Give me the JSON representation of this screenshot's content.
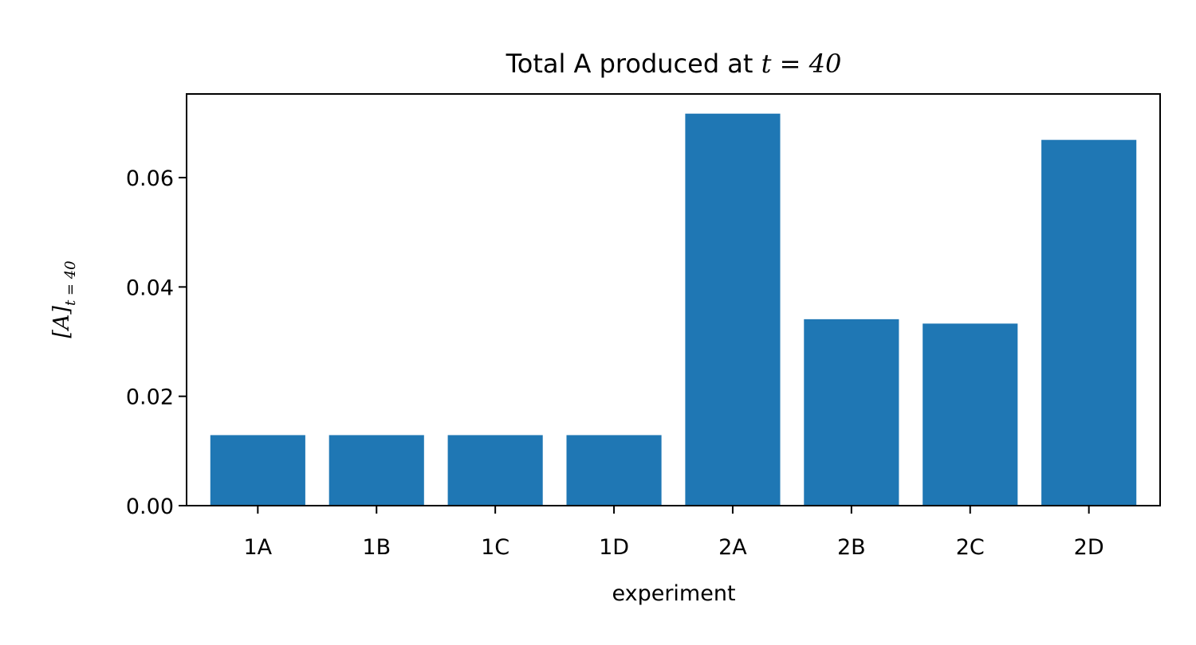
{
  "chart_data": {
    "type": "bar",
    "title_prefix": "Total A produced at ",
    "title_math": "t = 40",
    "xlabel": "experiment",
    "ylabel_main": "[A]",
    "ylabel_sub": "t = 40",
    "categories": [
      "1A",
      "1B",
      "1C",
      "1D",
      "2A",
      "2B",
      "2C",
      "2D"
    ],
    "values": [
      0.0129,
      0.0129,
      0.0129,
      0.0129,
      0.0717,
      0.0341,
      0.0333,
      0.0669
    ],
    "ylim": [
      0,
      0.0753
    ],
    "yticks": [
      0.0,
      0.02,
      0.04,
      0.06
    ],
    "ytick_labels": [
      "0.00",
      "0.02",
      "0.04",
      "0.06"
    ],
    "bar_color": "#1f77b4",
    "grid": false,
    "legend": "none"
  }
}
